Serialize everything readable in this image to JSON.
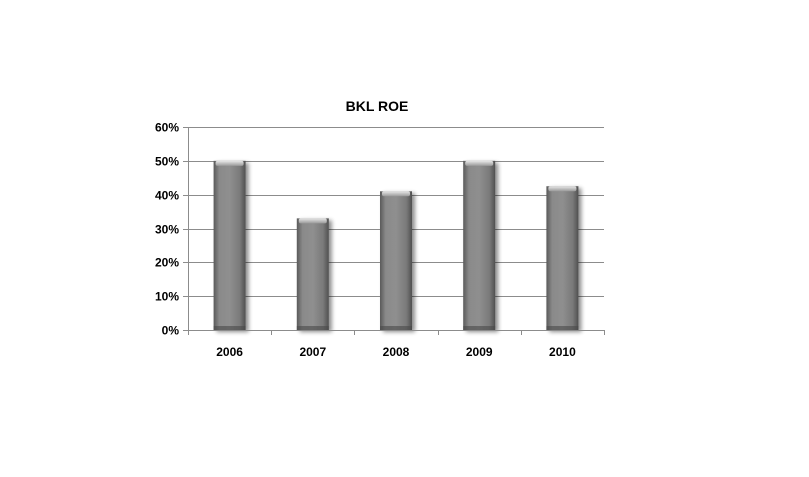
{
  "chart_data": {
    "type": "bar",
    "title": "BKL ROE",
    "xlabel": "",
    "ylabel": "",
    "categories": [
      "2006",
      "2007",
      "2008",
      "2009",
      "2010"
    ],
    "values": [
      0.5,
      0.33,
      0.41,
      0.5,
      0.425
    ],
    "ylim": [
      0,
      0.6
    ],
    "yticks": [
      0,
      0.1,
      0.2,
      0.3,
      0.4,
      0.5,
      0.6
    ],
    "ytick_labels": [
      "0%",
      "10%",
      "20%",
      "30%",
      "40%",
      "50%",
      "60%"
    ],
    "grid": true,
    "legend": "none",
    "bar_color": "#888888"
  }
}
